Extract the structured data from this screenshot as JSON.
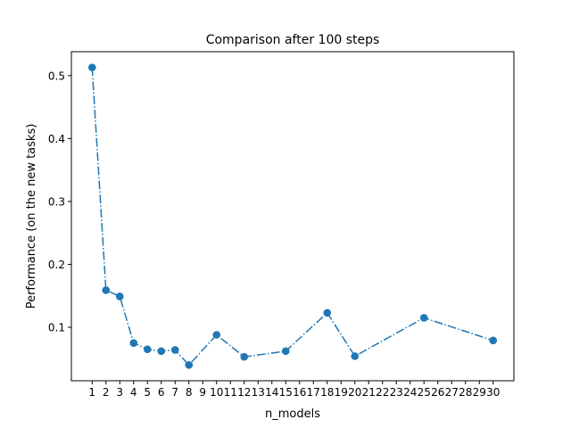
{
  "chart_data": {
    "type": "line",
    "title": "Comparison after 100 steps",
    "xlabel": "n_models",
    "ylabel": "Performance (on the new tasks)",
    "x_ticks": [
      1,
      2,
      3,
      4,
      5,
      6,
      7,
      8,
      9,
      10,
      11,
      12,
      13,
      14,
      15,
      16,
      17,
      18,
      19,
      20,
      21,
      22,
      23,
      24,
      25,
      26,
      27,
      28,
      29,
      30
    ],
    "y_ticks": [
      0.1,
      0.2,
      0.3,
      0.4,
      0.5
    ],
    "xlim": [
      -0.5,
      31.5
    ],
    "ylim": [
      0.015,
      0.538
    ],
    "grid": false,
    "series": [
      {
        "color": "#1f77b4",
        "line_style": "dash-dot",
        "marker": "circle",
        "x": [
          1,
          2,
          3,
          4,
          5,
          6,
          7,
          8,
          10,
          12,
          15,
          18,
          20,
          25,
          30
        ],
        "y": [
          0.513,
          0.159,
          0.149,
          0.075,
          0.065,
          0.062,
          0.064,
          0.04,
          0.088,
          0.053,
          0.062,
          0.123,
          0.054,
          0.115,
          0.079
        ]
      }
    ]
  }
}
